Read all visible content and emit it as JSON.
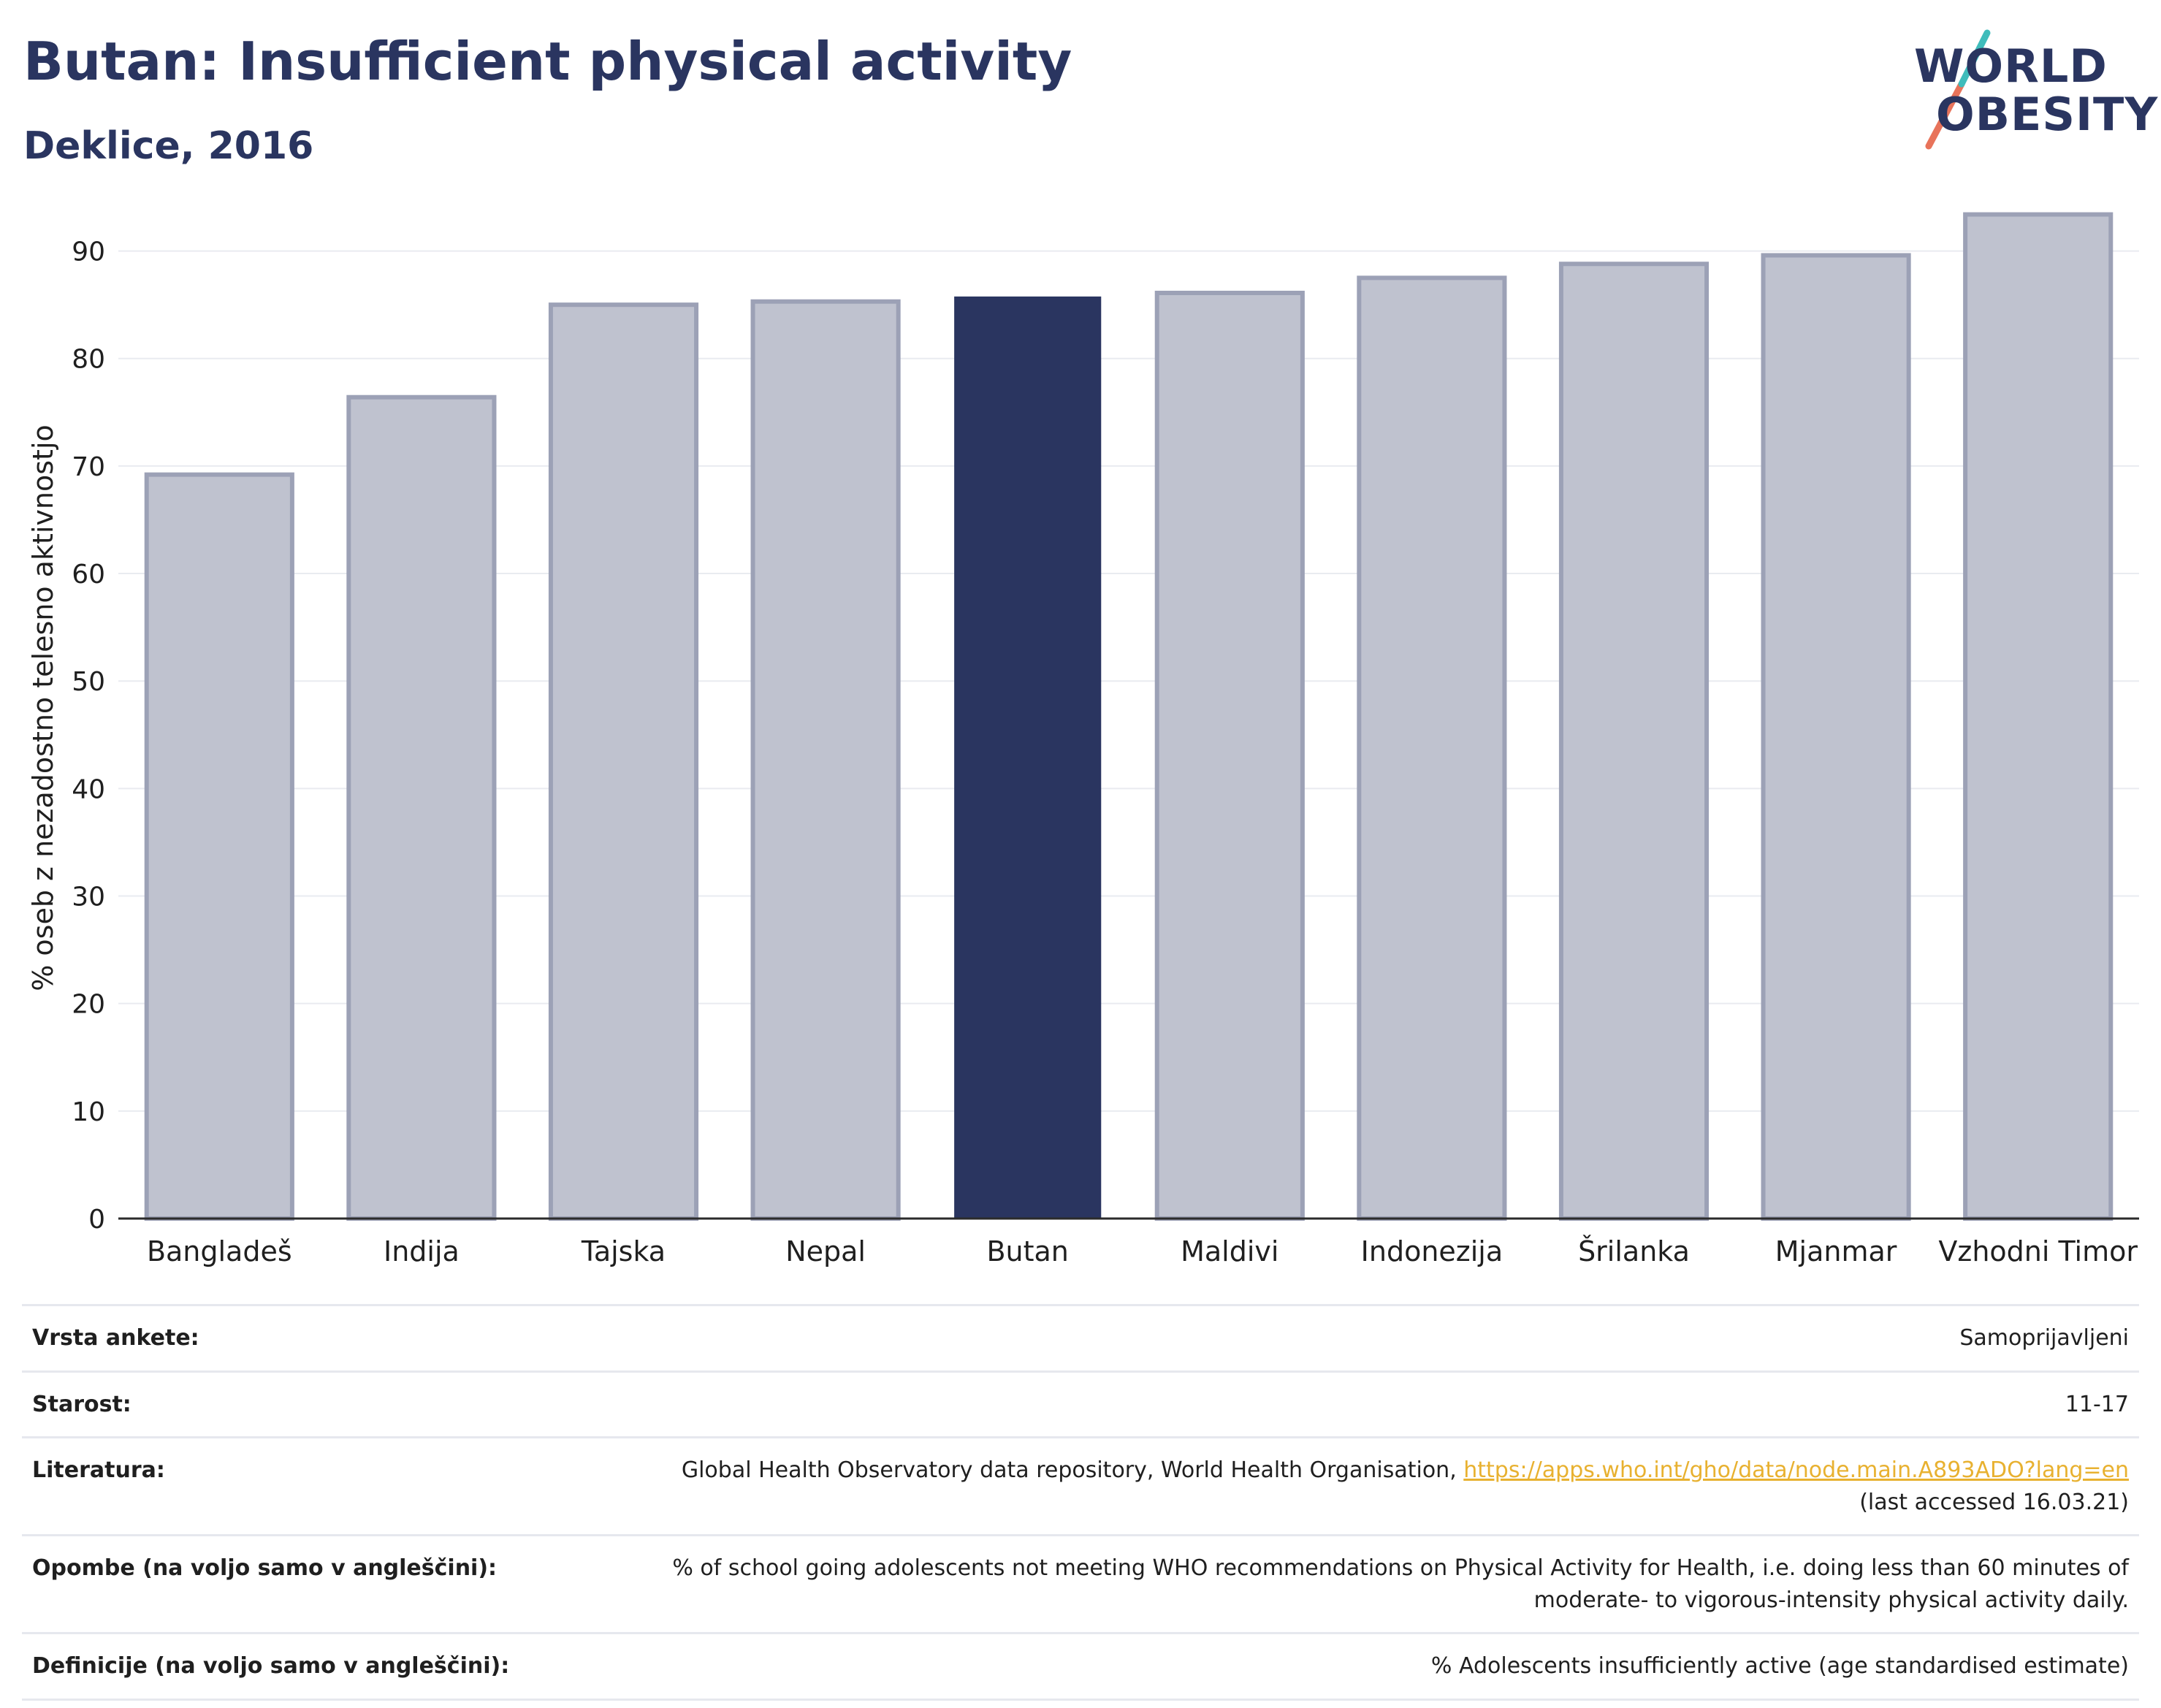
{
  "header": {
    "title": "Butan: Insufficient physical activity",
    "subtitle": "Deklice, 2016"
  },
  "logo": {
    "line1": "WORLD",
    "line2": "OBESITY"
  },
  "chart_data": {
    "type": "bar",
    "categories": [
      "Bangladeš",
      "Indija",
      "Tajska",
      "Nepal",
      "Butan",
      "Maldivi",
      "Indonezija",
      "Šrilanka",
      "Mjanmar",
      "Vzhodni Timor"
    ],
    "values": [
      69.2,
      76.4,
      85.0,
      85.3,
      85.7,
      86.1,
      87.5,
      88.8,
      89.6,
      93.4
    ],
    "highlight": "Butan",
    "ylabel": "% oseb z nezadostno telesno aktivnostjo",
    "ylim": [
      0,
      95
    ],
    "yticks": [
      0,
      10,
      20,
      30,
      40,
      50,
      60,
      70,
      80,
      90
    ],
    "grid": true,
    "colors": {
      "bar": "#bfc2cf",
      "bar_border": "#9ca1b6",
      "highlight": "#2a3560"
    }
  },
  "meta": {
    "rows": [
      {
        "key": "Vrsta ankete:",
        "value": "Samoprijavljeni"
      },
      {
        "key": "Starost:",
        "value": "11-17"
      },
      {
        "key": "Literatura:",
        "value": "Global Health Observatory data repository, World Health Organisation, ",
        "link": "https://apps.who.int/gho/data/node.main.A893ADO?lang=en",
        "value2": "(last accessed 16.03.21)"
      },
      {
        "key": "Opombe (na voljo samo v angleščini):",
        "value": "% of school going adolescents not meeting WHO recommendations on Physical Activity for Health, i.e. doing less than 60 minutes of moderate- to vigorous-intensity physical activity daily."
      },
      {
        "key": "Definicije (na voljo samo v angleščini):",
        "value": "% Adolescents insufficiently active (age standardised estimate)"
      }
    ]
  }
}
